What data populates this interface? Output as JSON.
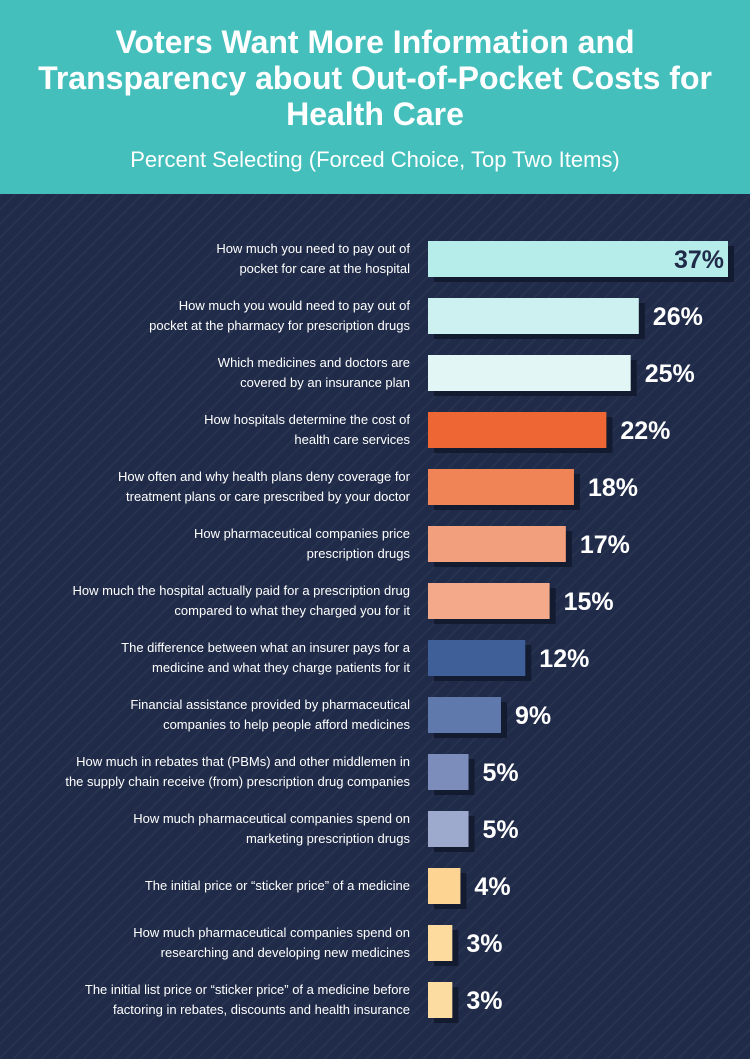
{
  "header": {
    "title": "Voters Want More Information and Transparency about Out-of-Pocket Costs for Health Care",
    "subtitle": "Percent Selecting (Forced Choice, Top Two Items)"
  },
  "chart_data": {
    "type": "bar",
    "orientation": "horizontal",
    "title": "Voters Want More Information and Transparency about Out-of-Pocket Costs for Health Care",
    "subtitle": "Percent Selecting (Forced Choice, Top Two Items)",
    "categories": [
      "How much you need to pay out of pocket for care at the hospital",
      "How much you would need to pay out of pocket at the pharmacy for prescription drugs",
      "Which medicines and doctors are covered by an insurance plan",
      "How hospitals determine the cost of health care services",
      "How often and why health plans deny coverage for treatment plans or care prescribed by your doctor",
      "How pharmaceutical companies price prescription drugs",
      "How much the hospital actually paid for a prescription drug compared to what they charged you for it",
      "The difference between what an insurer pays for a medicine and what they charge patients for it",
      "Financial assistance provided by pharmaceutical companies to help people afford medicines",
      "How much in rebates that (PBMs) and other middlemen in the supply chain receive (from) prescription drug companies",
      "How much pharmaceutical companies spend on marketing prescription drugs",
      "The initial price or “sticker price” of a medicine",
      "How much pharmaceutical companies spend on researching and developing new medicines",
      "The initial list price or “sticker price” of a medicine before factoring in rebates, discounts and health insurance"
    ],
    "label_lines": [
      [
        "How much you need to pay out of",
        "pocket for care at the hospital"
      ],
      [
        "How much you would need to pay out of",
        "pocket at the pharmacy for prescription drugs"
      ],
      [
        "Which medicines and doctors are",
        "covered by an insurance plan"
      ],
      [
        "How hospitals determine the cost of",
        "health care services"
      ],
      [
        "How often and why health plans deny coverage for",
        "treatment plans or care prescribed by your doctor"
      ],
      [
        "How pharmaceutical companies price",
        "prescription drugs"
      ],
      [
        "How much the hospital actually paid for a prescription drug",
        "compared to what they charged you for it"
      ],
      [
        "The difference between what an insurer pays for a",
        "medicine and what they charge patients for it"
      ],
      [
        "Financial assistance provided by pharmaceutical",
        "companies to help people afford medicines"
      ],
      [
        "How much in rebates that (PBMs) and other middlemen in",
        "the supply chain receive (from) prescription drug companies"
      ],
      [
        "How much pharmaceutical companies spend on",
        "marketing prescription drugs"
      ],
      [
        "The initial price or “sticker price” of a medicine"
      ],
      [
        "How much pharmaceutical companies spend on",
        "researching and developing new medicines"
      ],
      [
        "The initial list price or “sticker price” of a medicine before",
        "factoring in rebates, discounts and health insurance"
      ]
    ],
    "values": [
      37,
      26,
      25,
      22,
      18,
      17,
      15,
      12,
      9,
      5,
      5,
      4,
      3,
      3
    ],
    "value_labels": [
      "37%",
      "26%",
      "25%",
      "22%",
      "18%",
      "17%",
      "15%",
      "12%",
      "9%",
      "5%",
      "5%",
      "4%",
      "3%",
      "3%"
    ],
    "colors": [
      "#b6ecea",
      "#ccf1f0",
      "#e2f6f5",
      "#ee6633",
      "#f08456",
      "#f29f7d",
      "#f3a98a",
      "#3e5f97",
      "#6079ad",
      "#7c8dbc",
      "#9eaacd",
      "#fdd491",
      "#fddb9f",
      "#fddca1"
    ],
    "value_label_colors": [
      "#1f2b48",
      "#ffffff",
      "#ffffff",
      "#ffffff",
      "#ffffff",
      "#ffffff",
      "#ffffff",
      "#ffffff",
      "#ffffff",
      "#ffffff",
      "#ffffff",
      "#ffffff",
      "#ffffff",
      "#ffffff"
    ],
    "xlim": [
      0,
      37
    ],
    "grid": false,
    "legend": "none"
  }
}
